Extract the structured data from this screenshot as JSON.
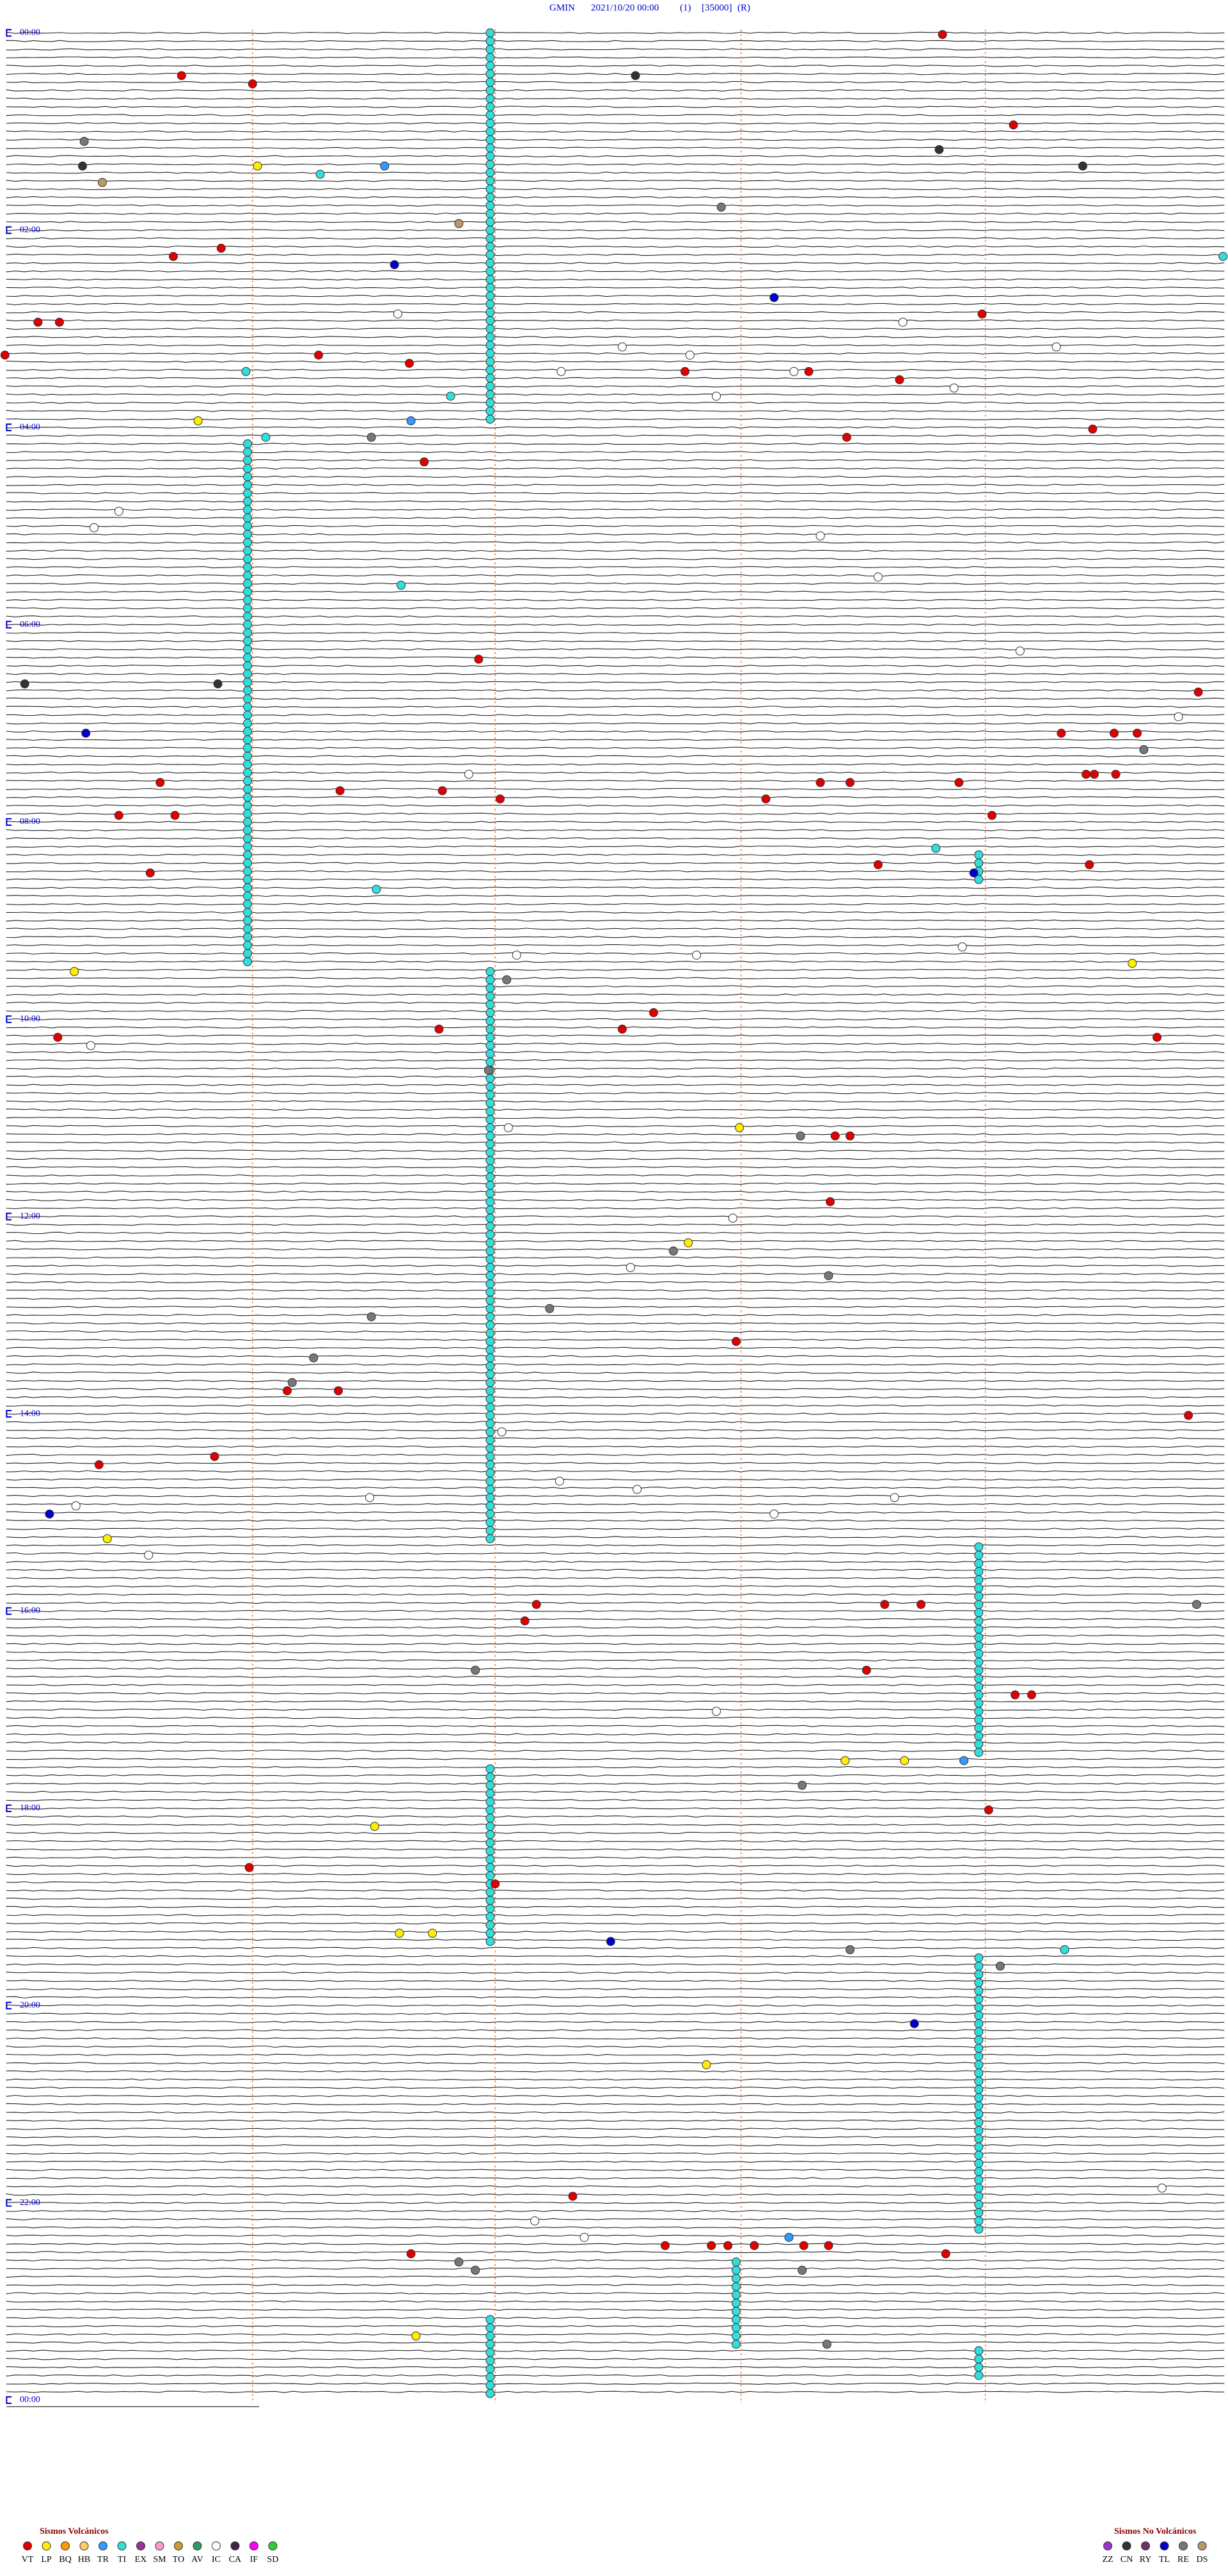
{
  "header": {
    "station": "GMIN",
    "datetime": "2021/10/20 00:00",
    "channel": "(1)",
    "scale": "[35000]",
    "mode": "(R)"
  },
  "time_labels": [
    "00:00",
    "02:00",
    "04:00",
    "06:00",
    "08:00",
    "10:00",
    "12:00",
    "14:00",
    "16:00",
    "18:00",
    "20:00",
    "22:00",
    "00:00"
  ],
  "legend_volcanic": {
    "title": "Sismos Volcánicos",
    "items": [
      {
        "code": "VT",
        "color": "#e00000"
      },
      {
        "code": "LP",
        "color": "#ffee00"
      },
      {
        "code": "BQ",
        "color": "#ff9900"
      },
      {
        "code": "HB",
        "color": "#ffcc66"
      },
      {
        "code": "TR",
        "color": "#3399ff"
      },
      {
        "code": "TI",
        "color": "#33dddd"
      },
      {
        "code": "EX",
        "color": "#993399"
      },
      {
        "code": "SM",
        "color": "#ff99cc"
      },
      {
        "code": "TO",
        "color": "#cc9933"
      },
      {
        "code": "AV",
        "color": "#339966"
      },
      {
        "code": "IC",
        "color": "#ffffff"
      },
      {
        "code": "CA",
        "color": "#442244"
      },
      {
        "code": "IF",
        "color": "#ff00ff"
      },
      {
        "code": "SD",
        "color": "#33cc33"
      }
    ]
  },
  "legend_non_volcanic": {
    "title": "Sismos No Volcánicos",
    "items": [
      {
        "code": "ZZ",
        "color": "#9933cc"
      },
      {
        "code": "CN",
        "color": "#333333"
      },
      {
        "code": "RY",
        "color": "#663366"
      },
      {
        "code": "TL",
        "color": "#0000cc"
      },
      {
        "code": "RE",
        "color": "#777777"
      },
      {
        "code": "DS",
        "color": "#bb9966"
      }
    ]
  }
}
